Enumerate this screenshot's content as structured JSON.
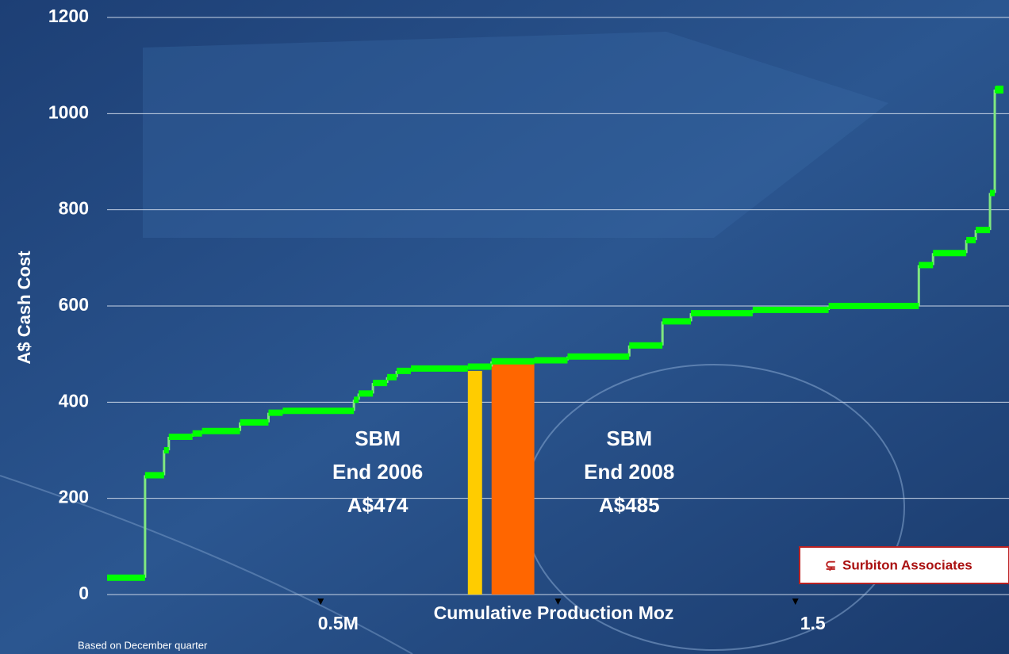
{
  "chart_data": {
    "type": "step",
    "ylabel": "A$ Cash Cost",
    "xlabel": "Cumulative Production Moz",
    "footnote": "Based on December quarter",
    "logo": "Surbiton Associates",
    "ylim": [
      0,
      1200
    ],
    "yticks": [
      0,
      200,
      400,
      600,
      800,
      1000,
      1200
    ],
    "xlim": [
      0.05,
      1.95
    ],
    "xticks": [
      {
        "value": 0.5,
        "label": "0.5M"
      },
      {
        "value": 1.0,
        "label": null
      },
      {
        "value": 1.5,
        "label": "1.5"
      }
    ],
    "grid": true,
    "series": [
      {
        "name": null,
        "color": "#00ff00",
        "riser_color": "#80e880",
        "x": [
          0.05,
          0.13,
          0.17,
          0.18,
          0.23,
          0.25,
          0.33,
          0.39,
          0.42,
          0.57,
          0.58,
          0.61,
          0.64,
          0.66,
          0.69,
          0.81,
          0.86,
          0.95,
          1.02,
          1.15,
          1.22,
          1.28,
          1.41,
          1.57,
          1.76,
          1.79,
          1.86,
          1.88,
          1.91,
          1.92,
          1.93
        ],
        "values": [
          35,
          248,
          300,
          328,
          335,
          340,
          358,
          378,
          382,
          405,
          418,
          440,
          452,
          465,
          470,
          474,
          485,
          487,
          495,
          518,
          568,
          585,
          592,
          600,
          685,
          710,
          737,
          758,
          835,
          1050,
          1050
        ]
      }
    ],
    "bars": [
      {
        "x": [
          0.81,
          0.84
        ],
        "value": 465,
        "color": "#ffcc00"
      },
      {
        "x": [
          0.86,
          0.95
        ],
        "value": 480,
        "color": "#ff6600"
      }
    ],
    "annotations": [
      {
        "lines": [
          "SBM",
          "End 2006",
          "A$474"
        ],
        "x": 0.62
      },
      {
        "lines": [
          "SBM",
          "End 2008",
          "A$485"
        ],
        "x": 1.15
      }
    ]
  }
}
